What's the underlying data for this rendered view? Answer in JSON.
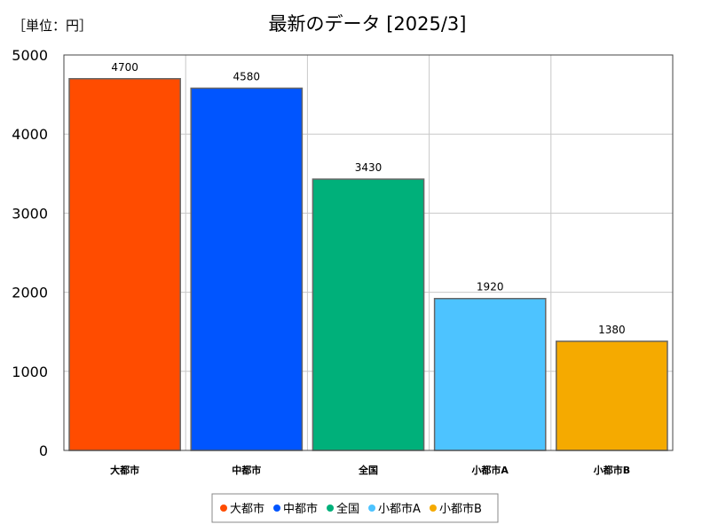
{
  "chart_data": {
    "type": "bar",
    "title": "最新のデータ [2025/3]",
    "unit_label": "［単位：円］",
    "xlabel": "",
    "ylabel": "",
    "ylim": [
      0,
      5000
    ],
    "yticks": [
      0,
      1000,
      2000,
      3000,
      4000,
      5000
    ],
    "grid": true,
    "legend_position": "bottom",
    "categories": [
      "大都市",
      "中都市",
      "全国",
      "小都市A",
      "小都市B"
    ],
    "values": [
      4700,
      4580,
      3430,
      1920,
      1380
    ],
    "colors": [
      "#ff4c00",
      "#0055ff",
      "#00b07a",
      "#4dc3ff",
      "#f5aa00"
    ]
  }
}
